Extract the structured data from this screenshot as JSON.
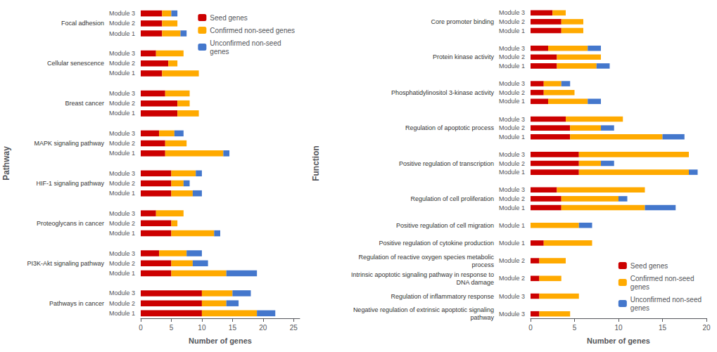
{
  "chart_data": [
    {
      "type": "bar",
      "orientation": "horizontal",
      "stacked": true,
      "grid": false,
      "legend": "upper right",
      "xlabel": "Number of genes",
      "ylabel": "Pathway",
      "xlim": [
        0,
        26
      ],
      "xticks": [
        0,
        5,
        10,
        15,
        20,
        25
      ],
      "groups": [
        {
          "name": "Focal adhesion",
          "categories": [
            "Module 1",
            "Module 2",
            "Module 3"
          ]
        },
        {
          "name": "Cellular senescence",
          "categories": [
            "Module 1",
            "Module 2",
            "Module 3"
          ]
        },
        {
          "name": "Breast cancer",
          "categories": [
            "Module 1",
            "Module 2",
            "Module 3"
          ]
        },
        {
          "name": "MAPK signaling pathway",
          "categories": [
            "Module 1",
            "Module 2",
            "Module 3"
          ]
        },
        {
          "name": "HIF-1 signaling pathway",
          "categories": [
            "Module 1",
            "Module 2",
            "Module 3"
          ]
        },
        {
          "name": "Proteoglycans in cancer",
          "categories": [
            "Module 1",
            "Module 2",
            "Module 3"
          ]
        },
        {
          "name": "PI3K-Akt signaling pathway",
          "categories": [
            "Module 1",
            "Module 2",
            "Module 3"
          ]
        },
        {
          "name": "Pathways in cancer",
          "categories": [
            "Module 1",
            "Module 2",
            "Module 3"
          ]
        }
      ],
      "series": [
        {
          "name": "Seed genes",
          "color": "#CC0000",
          "values": [
            3.5,
            3.5,
            3.5,
            3.5,
            4.5,
            2.5,
            6.0,
            6.0,
            4.0,
            4.0,
            4.0,
            3.0,
            5.0,
            5.0,
            5.0,
            5.0,
            5.0,
            2.5,
            5.0,
            5.0,
            3.0,
            10.0,
            10.0,
            10.0
          ]
        },
        {
          "name": "Confirmed non-seed genes",
          "color": "#FFAA00",
          "values": [
            3.0,
            2.5,
            1.5,
            6.0,
            1.5,
            4.5,
            3.5,
            2.0,
            4.0,
            9.5,
            3.5,
            2.5,
            3.5,
            2.0,
            4.0,
            7.0,
            1.0,
            4.5,
            9.0,
            3.5,
            4.5,
            9.0,
            4.0,
            5.0
          ]
        },
        {
          "name": "Unconfirmed non-seed\ngenes",
          "color": "#4477CC",
          "values": [
            1.0,
            0,
            1.0,
            0,
            0,
            0,
            0,
            0,
            0,
            1.0,
            0,
            1.5,
            1.5,
            1.0,
            1.0,
            1.0,
            0,
            0,
            5.0,
            2.5,
            2.5,
            3.0,
            2.0,
            3.0
          ]
        }
      ]
    },
    {
      "type": "bar",
      "orientation": "horizontal",
      "stacked": true,
      "grid": false,
      "legend": "lower right",
      "xlabel": "Number of genes",
      "ylabel": "Function",
      "xlim": [
        0,
        20
      ],
      "xticks": [
        0,
        5,
        10,
        15,
        20
      ],
      "groups": [
        {
          "name": "Core promoter binding",
          "categories": [
            "Module 1",
            "Module 2",
            "Module 3"
          ]
        },
        {
          "name": "Protein kinase activity",
          "categories": [
            "Module 1",
            "Module 2",
            "Module 3"
          ]
        },
        {
          "name": "Phosphatidylinositol 3-kinase activity",
          "categories": [
            "Module 1",
            "Module 2",
            "Module 3"
          ]
        },
        {
          "name": "Regulation of apoptotic process",
          "categories": [
            "Module 1",
            "Module 2",
            "Module 3"
          ]
        },
        {
          "name": "Positive regulation of transcription",
          "categories": [
            "Module 1",
            "Module 2",
            "Module 3"
          ]
        },
        {
          "name": "Regulation of cell proliferation",
          "categories": [
            "Module 1",
            "Module 2",
            "Module 3"
          ]
        },
        {
          "name": "Positive regulation of cell migration",
          "categories": [
            "Module 1"
          ]
        },
        {
          "name": "Positive regulation of cytokine production",
          "categories": [
            "Module 1"
          ]
        },
        {
          "name": "Regulation of reactive oxygen species metabolic\nprocess",
          "categories": [
            "Module 2"
          ]
        },
        {
          "name": "Intrinsic apoptotic signaling pathway in response to\nDNA damage",
          "categories": [
            "Module 2"
          ]
        },
        {
          "name": "Regulation of inflammatory response",
          "categories": [
            "Module 3"
          ]
        },
        {
          "name": "Negative regulation of extrinsic apoptotic signaling\npathway",
          "categories": [
            "Module 3"
          ]
        }
      ],
      "series": [
        {
          "name": "Seed genes",
          "color": "#CC0000",
          "values": [
            3.5,
            3.5,
            2.5,
            3.0,
            3.0,
            2.0,
            2.0,
            1.5,
            1.5,
            4.5,
            4.5,
            4.0,
            5.5,
            5.5,
            5.5,
            3.5,
            3.5,
            3.0,
            0,
            1.5,
            1.0,
            1.0,
            1.0,
            1.0
          ]
        },
        {
          "name": "Confirmed non-seed\ngenes",
          "color": "#FFAA00",
          "values": [
            2.5,
            2.5,
            1.5,
            4.5,
            5.0,
            4.5,
            4.5,
            3.5,
            2.0,
            10.5,
            3.5,
            6.5,
            12.5,
            2.5,
            12.5,
            9.5,
            6.5,
            10.0,
            5.5,
            5.5,
            3.0,
            2.5,
            4.5,
            3.5
          ]
        },
        {
          "name": "Unconfirmed non-seed\ngenes",
          "color": "#4477CC",
          "values": [
            0,
            0,
            0,
            1.5,
            0,
            1.5,
            1.5,
            0,
            1.0,
            2.5,
            1.5,
            0,
            1.0,
            1.5,
            0,
            3.5,
            1.0,
            0,
            1.5,
            0,
            0,
            0,
            0,
            0
          ]
        }
      ]
    }
  ]
}
